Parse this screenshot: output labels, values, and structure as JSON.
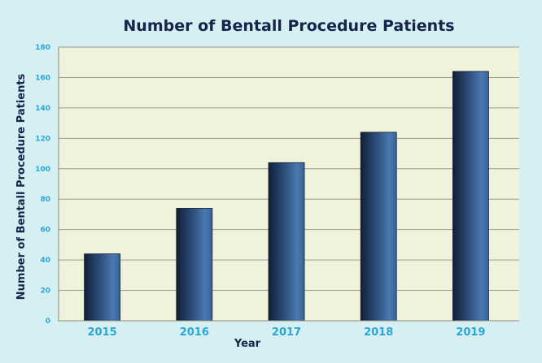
{
  "chart_data": {
    "type": "bar",
    "title": "Number of Bentall Procedure Patients",
    "xlabel": "Year",
    "ylabel": "Number of Bentall Procedure Patients",
    "categories": [
      "2015",
      "2016",
      "2017",
      "2018",
      "2019"
    ],
    "values": [
      44,
      74,
      104,
      124,
      164
    ],
    "ylim": [
      0,
      180
    ],
    "yticks": [
      0,
      20,
      40,
      60,
      80,
      100,
      120,
      140,
      160,
      180
    ],
    "grid": true,
    "legend": "none",
    "colors": {
      "background": "#d6eff2",
      "plot_background": "#f0f3dc",
      "bar_dark": "#16263f",
      "bar_light": "#4a79b0",
      "tick_text": "#2aa6d8",
      "title_text": "#16234a",
      "gridline": "#9a9a90"
    }
  }
}
